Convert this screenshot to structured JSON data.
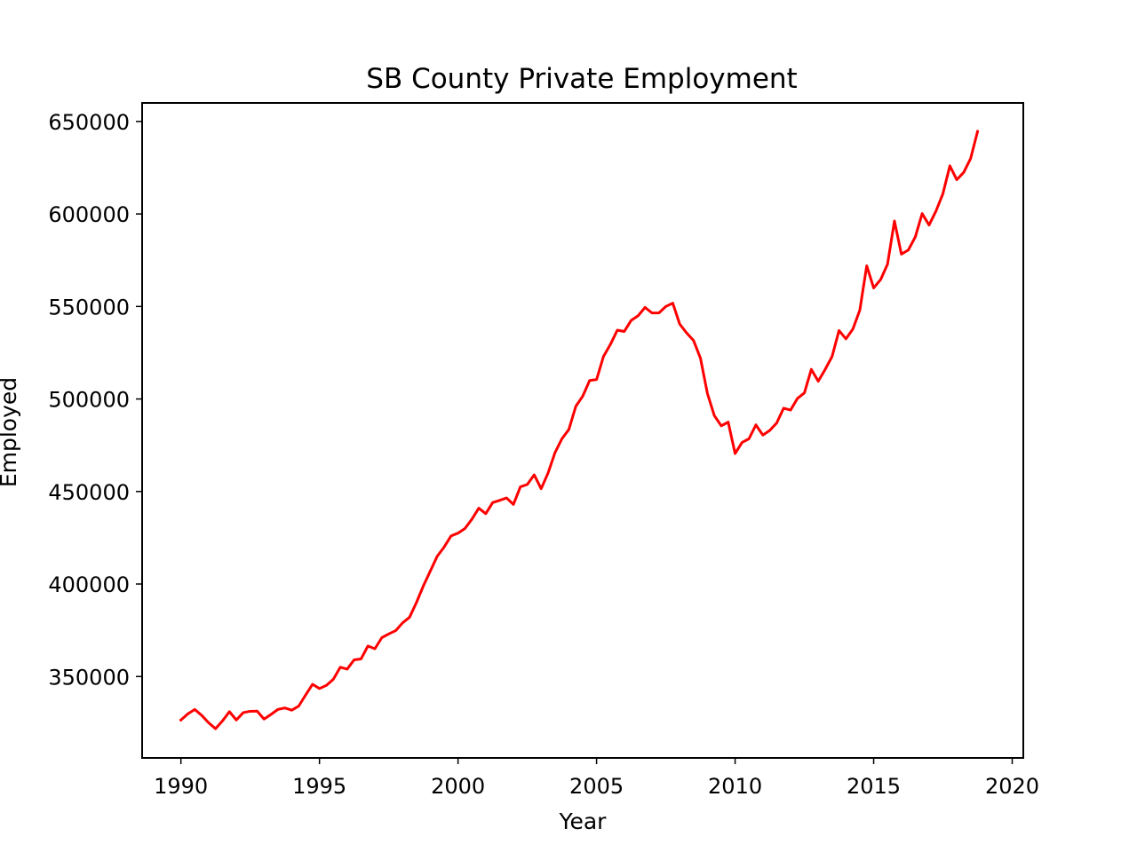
{
  "chart_data": {
    "type": "line",
    "title": "SB County Private Employment",
    "xlabel": "Year",
    "ylabel": "Employed",
    "xlim": [
      1988.6,
      2020.4
    ],
    "ylim": [
      306000,
      660000
    ],
    "xticks": [
      1990,
      1995,
      2000,
      2005,
      2010,
      2015,
      2020
    ],
    "xtick_labels": [
      "1990",
      "1995",
      "2000",
      "2005",
      "2010",
      "2015",
      "2020"
    ],
    "yticks": [
      350000,
      400000,
      450000,
      500000,
      550000,
      600000,
      650000
    ],
    "ytick_labels": [
      "350000",
      "400000",
      "450000",
      "500000",
      "550000",
      "600000",
      "650000"
    ],
    "grid": false,
    "legend": "none",
    "series": [
      {
        "name": "Employed",
        "color": "#ff0000",
        "x": [
          1990.0,
          1990.25,
          1990.5,
          1990.75,
          1991.0,
          1991.25,
          1991.5,
          1991.75,
          1992.0,
          1992.25,
          1992.5,
          1992.75,
          1993.0,
          1993.25,
          1993.5,
          1993.75,
          1994.0,
          1994.25,
          1994.5,
          1994.75,
          1995.0,
          1995.25,
          1995.5,
          1995.75,
          1996.0,
          1996.25,
          1996.5,
          1996.75,
          1997.0,
          1997.25,
          1997.5,
          1997.75,
          1998.0,
          1998.25,
          1998.5,
          1998.75,
          1999.0,
          1999.25,
          1999.5,
          1999.75,
          2000.0,
          2000.25,
          2000.5,
          2000.75,
          2001.0,
          2001.25,
          2001.5,
          2001.75,
          2002.0,
          2002.25,
          2002.5,
          2002.75,
          2003.0,
          2003.25,
          2003.5,
          2003.75,
          2004.0,
          2004.25,
          2004.5,
          2004.75,
          2005.0,
          2005.25,
          2005.5,
          2005.75,
          2006.0,
          2006.25,
          2006.5,
          2006.75,
          2007.0,
          2007.25,
          2007.5,
          2007.75,
          2008.0,
          2008.25,
          2008.5,
          2008.75,
          2009.0,
          2009.25,
          2009.5,
          2009.75,
          2010.0,
          2010.25,
          2010.5,
          2010.75,
          2011.0,
          2011.25,
          2011.5,
          2011.75,
          2012.0,
          2012.25,
          2012.5,
          2012.75,
          2013.0,
          2013.25,
          2013.5,
          2013.75,
          2014.0,
          2014.25,
          2014.5,
          2014.75,
          2015.0,
          2015.25,
          2015.5,
          2015.75,
          2016.0,
          2016.25,
          2016.5,
          2016.75,
          2017.0,
          2017.25,
          2017.5,
          2017.75,
          2018.0,
          2018.25,
          2018.5,
          2018.75
        ],
        "y": [
          326500,
          329800,
          332200,
          329000,
          325000,
          321800,
          326000,
          331000,
          326500,
          330500,
          331200,
          331300,
          327000,
          329500,
          332200,
          333000,
          331800,
          334000,
          340000,
          345800,
          343500,
          345200,
          348500,
          355000,
          354000,
          359000,
          359500,
          366500,
          365000,
          371000,
          373000,
          374800,
          379000,
          382000,
          390000,
          399000,
          407000,
          415000,
          420000,
          426000,
          427500,
          430000,
          435000,
          441000,
          438000,
          444000,
          445200,
          446500,
          443000,
          452500,
          453800,
          459000,
          451500,
          460000,
          471000,
          478500,
          483500,
          496000,
          501500,
          510000,
          510500,
          523000,
          529500,
          537200,
          536500,
          542500,
          545000,
          549500,
          546500,
          546500,
          550000,
          551800,
          540500,
          535700,
          531600,
          522000,
          503000,
          491000,
          485500,
          487500,
          470500,
          476500,
          478500,
          486000,
          480500,
          483000,
          487000,
          495000,
          494000,
          500300,
          503300,
          516000,
          509600,
          516000,
          523000,
          537000,
          532500,
          537800,
          548000,
          572000,
          560000,
          564500,
          572800,
          596200,
          578300,
          580500,
          587500,
          600200,
          594000,
          601600,
          611000,
          626000,
          618500,
          622500,
          630000,
          644600
        ]
      }
    ]
  }
}
